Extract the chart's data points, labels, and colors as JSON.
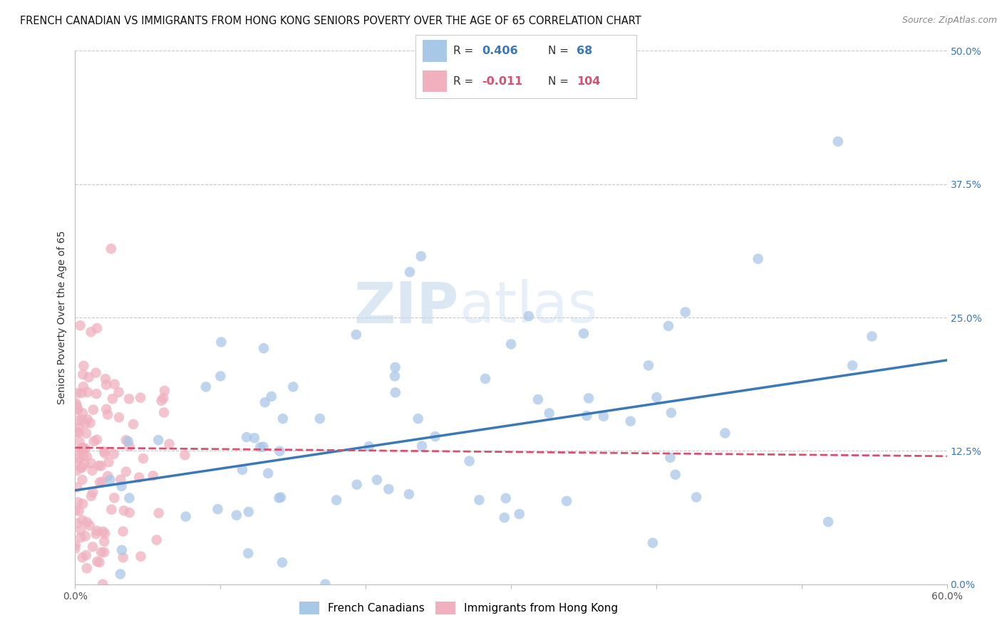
{
  "title": "FRENCH CANADIAN VS IMMIGRANTS FROM HONG KONG SENIORS POVERTY OVER THE AGE OF 65 CORRELATION CHART",
  "source": "Source: ZipAtlas.com",
  "ylabel": "Seniors Poverty Over the Age of 65",
  "xlim": [
    0.0,
    0.6
  ],
  "ylim": [
    0.0,
    0.5
  ],
  "xticks": [
    0.0,
    0.1,
    0.2,
    0.3,
    0.4,
    0.5,
    0.6
  ],
  "xticklabels": [
    "0.0%",
    "",
    "",
    "",
    "",
    "",
    "60.0%"
  ],
  "yticks_right": [
    0.0,
    0.125,
    0.25,
    0.375,
    0.5
  ],
  "yticklabels_right": [
    "0.0%",
    "12.5%",
    "25.0%",
    "37.5%",
    "50.0%"
  ],
  "color_blue": "#a8c8e8",
  "color_blue_line": "#3a78b8",
  "color_pink": "#f0b0be",
  "color_pink_line": "#d85070",
  "color_grid": "#c8c8c8",
  "watermark_zip": "ZIP",
  "watermark_atlas": "atlas",
  "series1_label": "French Canadians",
  "series2_label": "Immigrants from Hong Kong",
  "blue_R": 0.406,
  "blue_N": 68,
  "pink_R": -0.011,
  "pink_N": 104,
  "blue_line_start_y": 0.088,
  "blue_line_end_y": 0.21,
  "pink_line_start_y": 0.128,
  "pink_line_end_y": 0.12,
  "title_fontsize": 10.5,
  "tick_fontsize": 10,
  "source_fontsize": 9,
  "background_color": "#ffffff"
}
